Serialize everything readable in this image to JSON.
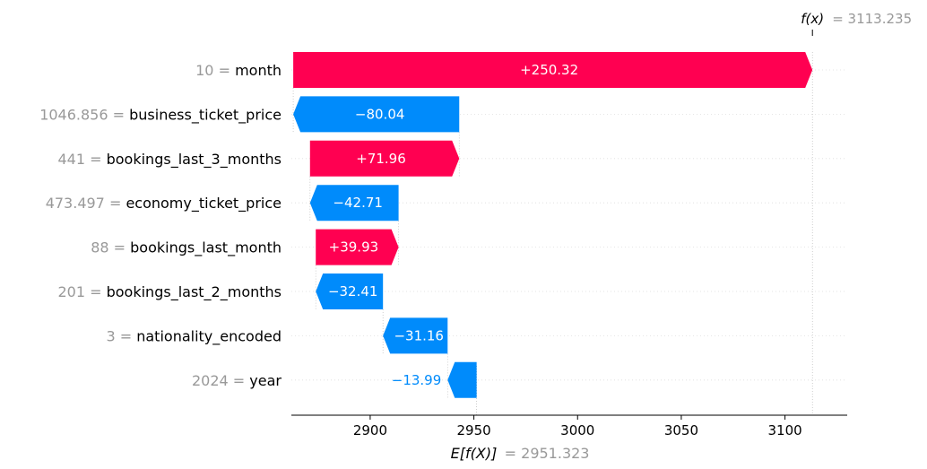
{
  "chart_data": {
    "type": "waterfall",
    "base_value": 2951.323,
    "output_value": 3113.235,
    "base_label": "E[f(X)]",
    "output_label": "f(x)",
    "base_value_text": "= 2951.323",
    "output_value_text": "= 3113.235",
    "xlim": [
      2862,
      3130
    ],
    "x_ticks": [
      2900,
      2950,
      3000,
      3050,
      3100
    ],
    "x_tick_labels": [
      "2900",
      "2950",
      "3000",
      "3050",
      "3100"
    ],
    "features": [
      {
        "value": "10",
        "name": "month",
        "shap": 250.32,
        "label": "+250.32"
      },
      {
        "value": "1046.856",
        "name": "business_ticket_price",
        "shap": -80.04,
        "label": "−80.04"
      },
      {
        "value": "441",
        "name": "bookings_last_3_months",
        "shap": 71.96,
        "label": "+71.96"
      },
      {
        "value": "473.497",
        "name": "economy_ticket_price",
        "shap": -42.71,
        "label": "−42.71"
      },
      {
        "value": "88",
        "name": "bookings_last_month",
        "shap": 39.93,
        "label": "+39.93"
      },
      {
        "value": "201",
        "name": "bookings_last_2_months",
        "shap": -32.41,
        "label": "−32.41"
      },
      {
        "value": "3",
        "name": "nationality_encoded",
        "shap": -31.16,
        "label": "−31.16"
      },
      {
        "value": "2024",
        "name": "year",
        "shap": -13.99,
        "label": "−13.99"
      }
    ],
    "colors": {
      "positive": "#ff0051",
      "negative": "#008bfb",
      "value_text": "#999999",
      "grid": "#dddddd"
    }
  }
}
